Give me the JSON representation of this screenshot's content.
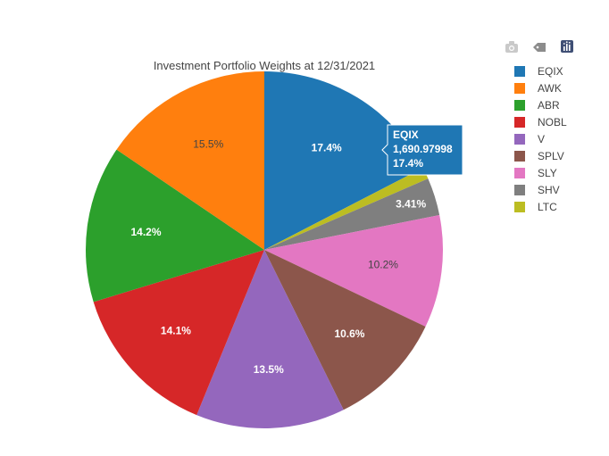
{
  "chart_data": {
    "type": "pie",
    "title": "Investment Portfolio Weights at 12/31/2021",
    "slices": [
      {
        "label": "EQIX",
        "percent": 17.4,
        "color": "#1f77b4",
        "text_color": "#ffffff"
      },
      {
        "label": "LTC",
        "percent": 1.06,
        "color": "#bcbd22",
        "text_color": "#444444"
      },
      {
        "label": "SHV",
        "percent": 3.41,
        "color": "#7f7f7f",
        "text_color": "#ffffff"
      },
      {
        "label": "SLY",
        "percent": 10.2,
        "color": "#e377c2",
        "text_color": "#444444"
      },
      {
        "label": "SPLV",
        "percent": 10.6,
        "color": "#8c564b",
        "text_color": "#ffffff"
      },
      {
        "label": "V",
        "percent": 13.5,
        "color": "#9467bd",
        "text_color": "#ffffff"
      },
      {
        "label": "NOBL",
        "percent": 14.1,
        "color": "#d62728",
        "text_color": "#ffffff"
      },
      {
        "label": "ABR",
        "percent": 14.2,
        "color": "#2ca02c",
        "text_color": "#ffffff"
      },
      {
        "label": "AWK",
        "percent": 15.5,
        "color": "#ff7f0e",
        "text_color": "#444444"
      }
    ],
    "legend": [
      "EQIX",
      "AWK",
      "ABR",
      "NOBL",
      "V",
      "SPLV",
      "SLY",
      "SHV",
      "LTC"
    ],
    "legend_position": "right",
    "hover": {
      "label": "EQIX",
      "value": "1,690.97998",
      "percent": "17.4%",
      "color": "#1f77b4"
    }
  },
  "modebar": {
    "icons": [
      "camera-icon",
      "tag-icon",
      "plotly-logo-icon"
    ]
  }
}
